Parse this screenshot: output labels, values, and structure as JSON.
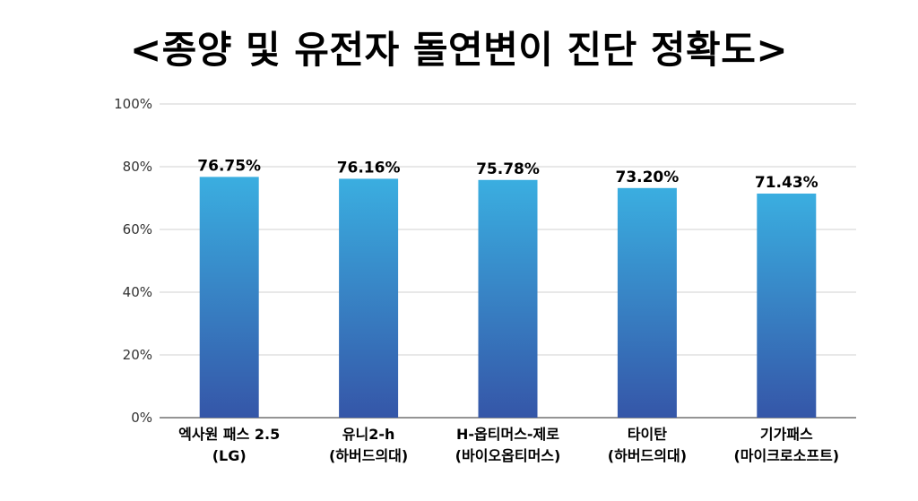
{
  "chart_data": {
    "type": "bar",
    "title": "<종양 및 유전자 돌연변이 진단 정확도>",
    "categories": [
      [
        "엑사원 패스 2.5",
        "(LG)"
      ],
      [
        "유니2-h",
        "(하버드의대)"
      ],
      [
        "H-옵티머스-제로",
        "(바이오옵티머스)"
      ],
      [
        "타이탄",
        "(하버드의대)"
      ],
      [
        "기가패스",
        "(마이크로소프트)"
      ]
    ],
    "values": [
      76.75,
      76.16,
      75.78,
      73.2,
      71.43
    ],
    "data_labels": [
      "76.75%",
      "76.16%",
      "75.78%",
      "73.20%",
      "71.43%"
    ],
    "yticks": [
      0,
      20,
      40,
      60,
      80,
      100
    ],
    "ytick_labels": [
      "0%",
      "20%",
      "40%",
      "60%",
      "80%",
      "100%"
    ],
    "ylim": [
      0,
      100
    ],
    "grid": true,
    "colors": {
      "bar_top": "#3aaee0",
      "bar_bottom": "#3556a8",
      "grid": "#d0d0d0",
      "axis": "#555555"
    }
  }
}
